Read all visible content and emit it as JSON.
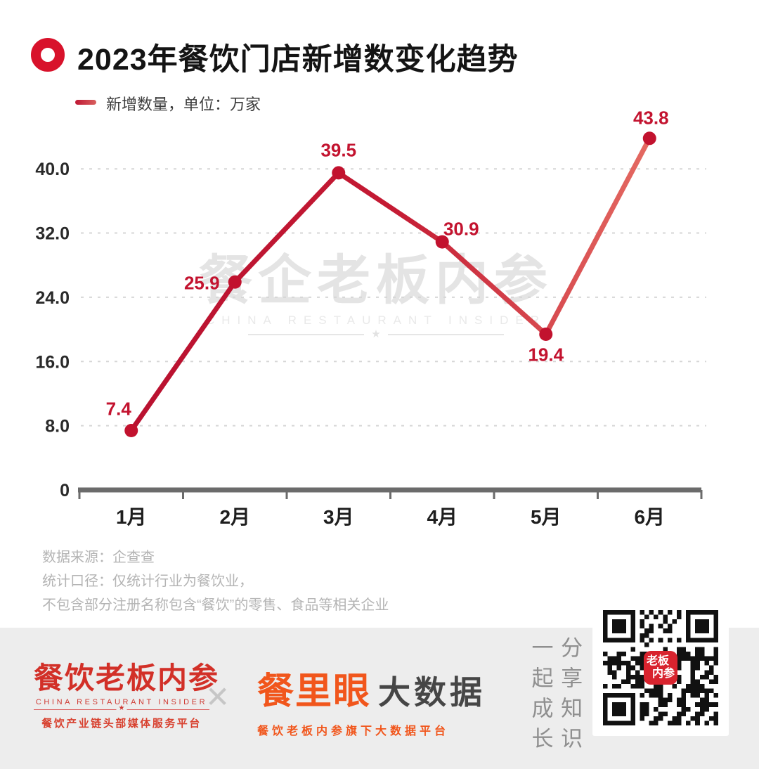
{
  "header": {
    "title": "2023年餐饮门店新增数变化趋势"
  },
  "legend": {
    "label": "新增数量，单位：万家"
  },
  "chart_data": {
    "type": "line",
    "title": "2023年餐饮门店新增数变化趋势",
    "series_name": "新增数量",
    "unit": "万家",
    "categories": [
      "1月",
      "2月",
      "3月",
      "4月",
      "5月",
      "6月"
    ],
    "values": [
      7.4,
      25.9,
      39.5,
      30.9,
      19.4,
      43.8
    ],
    "y_ticks": [
      0,
      8.0,
      16.0,
      24.0,
      32.0,
      40.0
    ],
    "ylim": [
      0,
      48
    ],
    "grid": "horizontal-dashed",
    "legend_position": "top-left",
    "line_gradient": [
      "#b91130",
      "#c41a33",
      "#e46a62"
    ],
    "marker_color": "#c2122e",
    "label_color": "#c3132f"
  },
  "watermark": {
    "cjk": "餐企老板内参",
    "en": "CHINA RESTAURANT INSIDER",
    "star": "★"
  },
  "notes": {
    "lines": [
      "数据来源：企查查",
      "统计口径：仅统计行业为餐饮业，",
      "不包含部分注册名称包含“餐饮”的零售、食品等相关企业"
    ]
  },
  "footer": {
    "insider_logo": {
      "name": "餐饮老板内参",
      "en": "CHINA RESTAURANT INSIDER",
      "star": "★",
      "tagline": "餐饮产业链头部媒体服务平台"
    },
    "separator": "✕",
    "canlieye_logo": {
      "brand": "餐里眼",
      "suffix": "大数据",
      "tagline": "餐饮老板内参旗下大数据平台"
    },
    "slogan": {
      "left_column": "一起成长",
      "right_column": "分享知识"
    },
    "qr_badge": {
      "line1": "老板",
      "line2": "内参"
    }
  }
}
